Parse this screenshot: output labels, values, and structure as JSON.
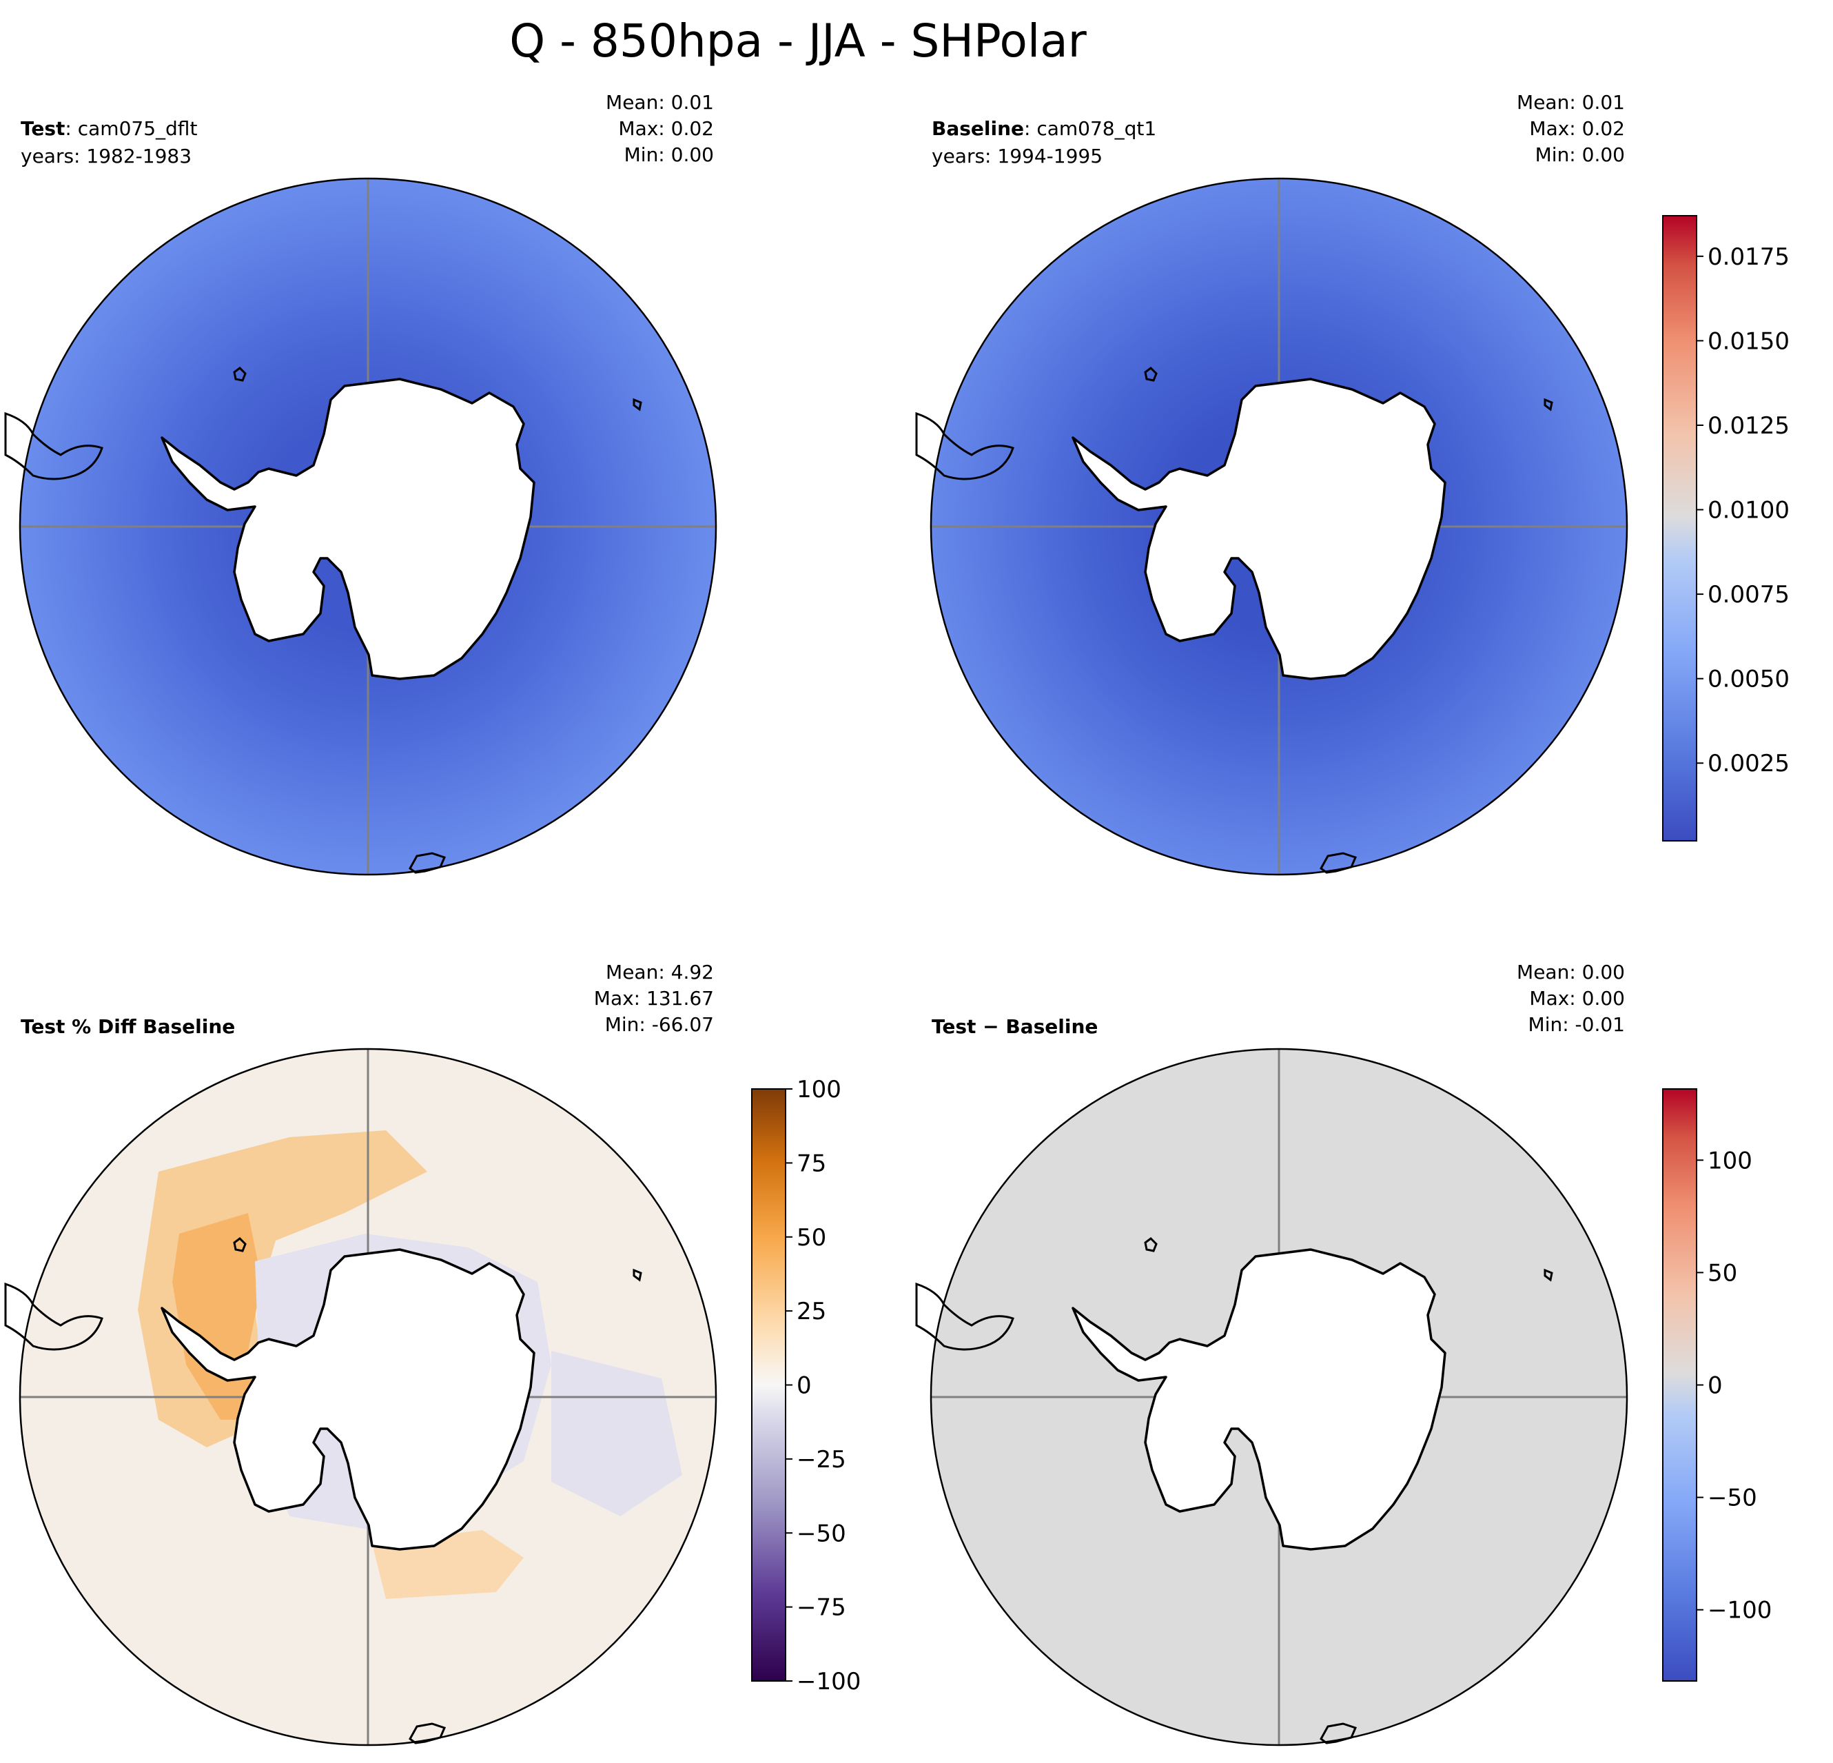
{
  "title": "Q - 850hpa - JJA - SHPolar",
  "panels": [
    {
      "id": "test",
      "label_bold": "Test",
      "label_rest": ": cam075_dflt",
      "years": "years: 1982-1983",
      "stats": [
        "Mean:  0.01",
        "Max:  0.02",
        "Min:  0.00"
      ]
    },
    {
      "id": "baseline",
      "label_bold": "Baseline",
      "label_rest": ": cam078_qt1",
      "years": "years: 1994-1995",
      "stats": [
        "Mean:  0.01",
        "Max:  0.02",
        "Min:  0.00"
      ]
    },
    {
      "id": "pctdiff",
      "label_bold": "Test % Diff Baseline",
      "label_rest": "",
      "years": "",
      "stats": [
        "Mean:  4.92",
        "Max: 131.67",
        "Min: -66.07"
      ]
    },
    {
      "id": "diff",
      "label_bold": "Test − Baseline",
      "label_rest": "",
      "years": "",
      "stats": [
        "Mean:  0.00",
        "Max:  0.00",
        "Min: -0.01"
      ]
    }
  ],
  "colorbars": {
    "top": {
      "colormap": "coolwarm",
      "range": [
        0.0002,
        0.0187
      ],
      "ticks": [
        {
          "value": 0.0025,
          "label": "0.0025"
        },
        {
          "value": 0.005,
          "label": "0.0050"
        },
        {
          "value": 0.0075,
          "label": "0.0075"
        },
        {
          "value": 0.01,
          "label": "0.0100"
        },
        {
          "value": 0.0125,
          "label": "0.0125"
        },
        {
          "value": 0.015,
          "label": "0.0150"
        },
        {
          "value": 0.0175,
          "label": "0.0175"
        }
      ]
    },
    "pctdiff": {
      "colormap": "PuOr_r",
      "range": [
        -100,
        100
      ],
      "ticks": [
        {
          "value": 100,
          "label": "100"
        },
        {
          "value": 75,
          "label": "75"
        },
        {
          "value": 50,
          "label": "50"
        },
        {
          "value": 25,
          "label": "25"
        },
        {
          "value": 0,
          "label": "0"
        },
        {
          "value": -25,
          "label": "−25"
        },
        {
          "value": -50,
          "label": "−50"
        },
        {
          "value": -75,
          "label": "−75"
        },
        {
          "value": -100,
          "label": "−100"
        }
      ]
    },
    "diff": {
      "colormap": "coolwarm",
      "range": [
        -131.67,
        131.67
      ],
      "ticks": [
        {
          "value": 100,
          "label": "100"
        },
        {
          "value": 50,
          "label": "50"
        },
        {
          "value": 0,
          "label": "0"
        },
        {
          "value": -50,
          "label": "−50"
        },
        {
          "value": -100,
          "label": "−100"
        }
      ]
    }
  },
  "colors": {
    "test_field": "#5e7ce2",
    "test_inner": "#4562d3",
    "baseline_field": "#5878df",
    "baseline_inner": "#3f5bcd",
    "pctdiff_field": "#f5eee6",
    "pctdiff_positive": "#f7c27d",
    "pctdiff_negative": "#d9d6ea",
    "diff_field": "#dcdcdc",
    "land_mask": "#ffffff",
    "coastline": "#000000",
    "gridline": "#808080"
  }
}
